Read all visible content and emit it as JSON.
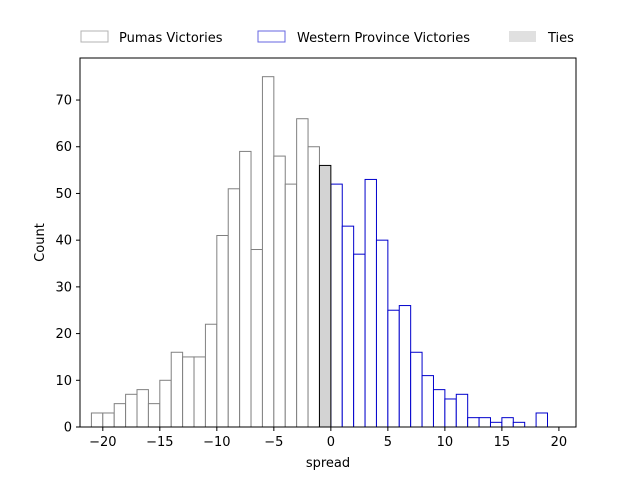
{
  "chart_data": {
    "type": "bar",
    "title": "",
    "xlabel": "spread",
    "ylabel": "Count",
    "xlim": [
      -22,
      21.5
    ],
    "ylim": [
      0,
      79
    ],
    "x_ticks": [
      -20,
      -15,
      -10,
      -5,
      0,
      5,
      10,
      15,
      20
    ],
    "x_tick_labels": [
      "−20",
      "−15",
      "−10",
      "−5",
      "0",
      "5",
      "10",
      "15",
      "20"
    ],
    "y_ticks": [
      0,
      10,
      20,
      30,
      40,
      50,
      60,
      70
    ],
    "y_tick_labels": [
      "0",
      "10",
      "20",
      "30",
      "40",
      "50",
      "60",
      "70"
    ],
    "bin_width": 1,
    "legend": {
      "placement": "above-plot"
    },
    "series": [
      {
        "name": "Pumas Victories",
        "edge_color": "#808080",
        "fill_color": "#ffffff",
        "bins": [
          {
            "x": -21,
            "count": 3
          },
          {
            "x": -20,
            "count": 3
          },
          {
            "x": -19,
            "count": 5
          },
          {
            "x": -18,
            "count": 7
          },
          {
            "x": -17,
            "count": 8
          },
          {
            "x": -16,
            "count": 5
          },
          {
            "x": -15,
            "count": 10
          },
          {
            "x": -14,
            "count": 16
          },
          {
            "x": -13,
            "count": 15
          },
          {
            "x": -12,
            "count": 15
          },
          {
            "x": -11,
            "count": 22
          },
          {
            "x": -10,
            "count": 41
          },
          {
            "x": -9,
            "count": 51
          },
          {
            "x": -8,
            "count": 59
          },
          {
            "x": -7,
            "count": 38
          },
          {
            "x": -6,
            "count": 75
          },
          {
            "x": -5,
            "count": 58
          },
          {
            "x": -4,
            "count": 52
          },
          {
            "x": -3,
            "count": 66
          },
          {
            "x": -2,
            "count": 60
          }
        ]
      },
      {
        "name": "Western Province Victories",
        "edge_color": "#0000cc",
        "fill_color": "#ffffff",
        "bins": [
          {
            "x": 0,
            "count": 52
          },
          {
            "x": 1,
            "count": 43
          },
          {
            "x": 2,
            "count": 37
          },
          {
            "x": 3,
            "count": 53
          },
          {
            "x": 4,
            "count": 40
          },
          {
            "x": 5,
            "count": 25
          },
          {
            "x": 6,
            "count": 26
          },
          {
            "x": 7,
            "count": 16
          },
          {
            "x": 8,
            "count": 11
          },
          {
            "x": 9,
            "count": 8
          },
          {
            "x": 10,
            "count": 6
          },
          {
            "x": 11,
            "count": 7
          },
          {
            "x": 12,
            "count": 2
          },
          {
            "x": 13,
            "count": 2
          },
          {
            "x": 14,
            "count": 1
          },
          {
            "x": 15,
            "count": 2
          },
          {
            "x": 16,
            "count": 1
          },
          {
            "x": 18,
            "count": 3
          }
        ]
      },
      {
        "name": "Ties",
        "edge_color": "#000000",
        "fill_color": "#d3d3d3",
        "bins": [
          {
            "x": -1,
            "count": 56
          }
        ]
      }
    ]
  }
}
